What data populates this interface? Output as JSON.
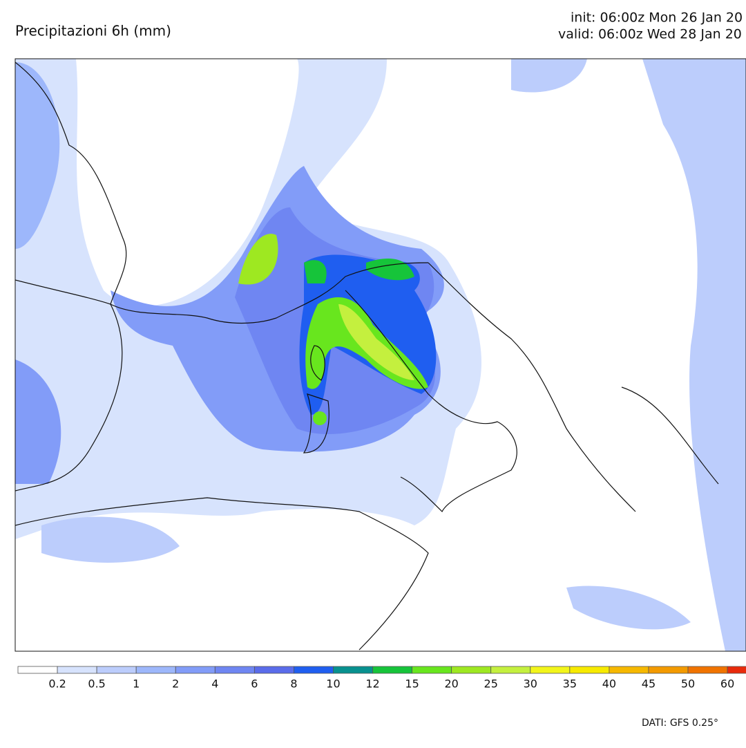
{
  "header": {
    "title": "Precipitazioni 6h (mm)",
    "init": "init: 06:00z Mon 26 Jan 20",
    "valid": "valid: 06:00z Wed 28 Jan 20"
  },
  "legend": {
    "labels": [
      0.2,
      0.5,
      1,
      2,
      4,
      6,
      8,
      10,
      12,
      15,
      20,
      25,
      30,
      35,
      40,
      45,
      50,
      60
    ],
    "colors": [
      "#ffffff",
      "#d7e3fd",
      "#bccdfc",
      "#9db7fb",
      "#829cf8",
      "#6f86f2",
      "#5a6cea",
      "#1f5ef0",
      "#08918f",
      "#16c43a",
      "#68e61e",
      "#9ee821",
      "#c4f03e",
      "#f2f51a",
      "#f7ea00",
      "#f6b800",
      "#f39a00",
      "#f07300",
      "#e82a0b"
    ]
  },
  "footer": {
    "source": "DATI: GFS 0.25°"
  }
}
